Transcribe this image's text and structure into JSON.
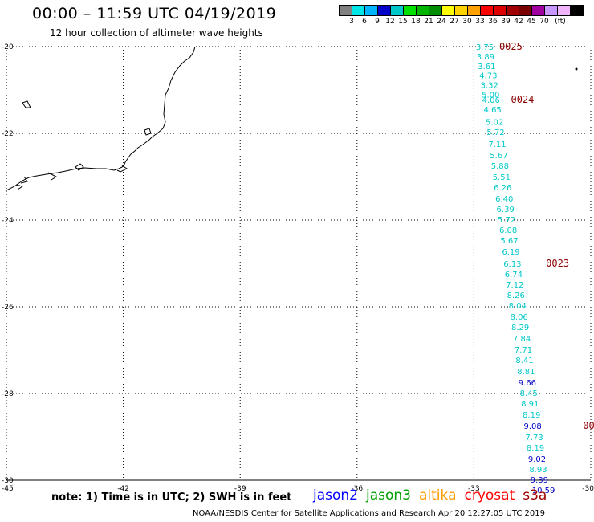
{
  "title": "00:00 – 11:59 UTC 04/19/2019",
  "subtitle": "12 hour collection of altimeter wave heights",
  "colorbar": {
    "colors": [
      "#808080",
      "#00e6e6",
      "#00b4ff",
      "#0000c8",
      "#00c8c8",
      "#00e000",
      "#00b400",
      "#008c00",
      "#ffff00",
      "#ffd200",
      "#ffa000",
      "#ff0000",
      "#dc0000",
      "#a00000",
      "#780000",
      "#a000a0",
      "#c896ff",
      "#f0b4ff",
      "#000000"
    ],
    "labels": [
      "3",
      "6",
      "9",
      "12",
      "15",
      "18",
      "21",
      "24",
      "27",
      "30",
      "33",
      "36",
      "39",
      "42",
      "45",
      "70",
      "(ft)"
    ]
  },
  "axes": {
    "lat_labels": [
      "-20",
      "-22",
      "-24",
      "-26",
      "-28",
      "-30"
    ],
    "lon_labels": [
      "-45",
      "-42",
      "-39",
      "-36",
      "-33",
      "-30"
    ]
  },
  "track": {
    "points": [
      {
        "lon": -32.95,
        "lat": -20.0,
        "v": "3.75",
        "color": "#00c8c8"
      },
      {
        "lon": -32.93,
        "lat": -20.22,
        "v": "3.89",
        "color": "#00c8c8"
      },
      {
        "lon": -32.9,
        "lat": -20.44,
        "v": "3.61",
        "color": "#00c8c8"
      },
      {
        "lon": -32.86,
        "lat": -20.66,
        "v": "4.73",
        "color": "#00c8c8"
      },
      {
        "lon": -32.83,
        "lat": -20.88,
        "v": "3.32",
        "color": "#00c8c8"
      },
      {
        "lon": -32.8,
        "lat": -21.1,
        "v": "5.00",
        "color": "#00c8c8"
      },
      {
        "lon": -32.79,
        "lat": -21.22,
        "v": "4.06",
        "color": "#00c8c8"
      },
      {
        "lon": -32.75,
        "lat": -21.44,
        "v": "4.65",
        "color": "#00c8c8"
      },
      {
        "lon": -32.7,
        "lat": -21.73,
        "v": "5.02",
        "color": "#00c8c8"
      },
      {
        "lon": -32.67,
        "lat": -21.96,
        "v": "5.72",
        "color": "#00c8c8"
      },
      {
        "lon": -32.63,
        "lat": -22.24,
        "v": "7.11",
        "color": "#00c8c8"
      },
      {
        "lon": -32.59,
        "lat": -22.5,
        "v": "5.67",
        "color": "#00c8c8"
      },
      {
        "lon": -32.56,
        "lat": -22.74,
        "v": "5.88",
        "color": "#00c8c8"
      },
      {
        "lon": -32.52,
        "lat": -23.0,
        "v": "5.51",
        "color": "#00c8c8"
      },
      {
        "lon": -32.49,
        "lat": -23.24,
        "v": "6.26",
        "color": "#00c8c8"
      },
      {
        "lon": -32.45,
        "lat": -23.5,
        "v": "6.40",
        "color": "#00c8c8"
      },
      {
        "lon": -32.42,
        "lat": -23.74,
        "v": "6.39",
        "color": "#00c8c8"
      },
      {
        "lon": -32.39,
        "lat": -23.98,
        "v": "5.72",
        "color": "#00c8c8"
      },
      {
        "lon": -32.35,
        "lat": -24.22,
        "v": "6.08",
        "color": "#00c8c8"
      },
      {
        "lon": -32.32,
        "lat": -24.46,
        "v": "5.67",
        "color": "#00c8c8"
      },
      {
        "lon": -32.28,
        "lat": -24.72,
        "v": "6.19",
        "color": "#00c8c8"
      },
      {
        "lon": -32.24,
        "lat": -25.0,
        "v": "6.13",
        "color": "#00c8c8"
      },
      {
        "lon": -32.21,
        "lat": -25.24,
        "v": "6.74",
        "color": "#00c8c8"
      },
      {
        "lon": -32.18,
        "lat": -25.48,
        "v": "7.12",
        "color": "#00c8c8"
      },
      {
        "lon": -32.15,
        "lat": -25.72,
        "v": "8.26",
        "color": "#00c8c8"
      },
      {
        "lon": -32.11,
        "lat": -25.96,
        "v": "8.04",
        "color": "#00c8c8"
      },
      {
        "lon": -32.07,
        "lat": -26.22,
        "v": "8.06",
        "color": "#00c8c8"
      },
      {
        "lon": -32.04,
        "lat": -26.46,
        "v": "8.29",
        "color": "#00c8c8"
      },
      {
        "lon": -32.0,
        "lat": -26.72,
        "v": "7.84",
        "color": "#00c8c8"
      },
      {
        "lon": -31.96,
        "lat": -26.98,
        "v": "7.71",
        "color": "#00c8c8"
      },
      {
        "lon": -31.93,
        "lat": -27.22,
        "v": "8.41",
        "color": "#00c8c8"
      },
      {
        "lon": -31.89,
        "lat": -27.48,
        "v": "8.81",
        "color": "#00c8c8"
      },
      {
        "lon": -31.86,
        "lat": -27.74,
        "v": "9.66",
        "color": "#0000c8"
      },
      {
        "lon": -31.82,
        "lat": -27.98,
        "v": "8.45",
        "color": "#00c8c8"
      },
      {
        "lon": -31.79,
        "lat": -28.22,
        "v": "8.91",
        "color": "#00c8c8"
      },
      {
        "lon": -31.75,
        "lat": -28.48,
        "v": "8.19",
        "color": "#00c8c8"
      },
      {
        "lon": -31.72,
        "lat": -28.74,
        "v": "9.08",
        "color": "#0000c8"
      },
      {
        "lon": -31.68,
        "lat": -29.0,
        "v": "7.73",
        "color": "#00c8c8"
      },
      {
        "lon": -31.65,
        "lat": -29.24,
        "v": "8.19",
        "color": "#00c8c8"
      },
      {
        "lon": -31.61,
        "lat": -29.5,
        "v": "9.02",
        "color": "#0000c8"
      },
      {
        "lon": -31.58,
        "lat": -29.74,
        "v": "8.93",
        "color": "#00c8c8"
      },
      {
        "lon": -31.55,
        "lat": -29.98,
        "v": "9.39",
        "color": "#0000c8"
      },
      {
        "lon": -31.51,
        "lat": -30.22,
        "v": "10.59",
        "color": "#0000c8"
      }
    ],
    "time_labels": [
      {
        "lon": -32.35,
        "lat": -20.0,
        "t": "0025"
      },
      {
        "lon": -32.05,
        "lat": -21.22,
        "t": "0024"
      },
      {
        "lon": -31.15,
        "lat": -25.0,
        "t": "0023"
      },
      {
        "lon": -30.2,
        "lat": -28.74,
        "t": "00"
      }
    ],
    "time_color": "#8b0000"
  },
  "notes": "note: 1) Time is in UTC; 2) SWH is in feet",
  "satellites": [
    {
      "name": "jason2",
      "color": "#0000ff"
    },
    {
      "name": "jason3",
      "color": "#00a000"
    },
    {
      "name": "altika",
      "color": "#ff9900"
    },
    {
      "name": "cryosat",
      "color": "#ff0000"
    },
    {
      "name": "s3a",
      "color": "#a00000"
    }
  ],
  "footer": "NOAA/NESDIS Center for Satellite Applications and Research   Apr 20 12:27:05 UTC 2019"
}
